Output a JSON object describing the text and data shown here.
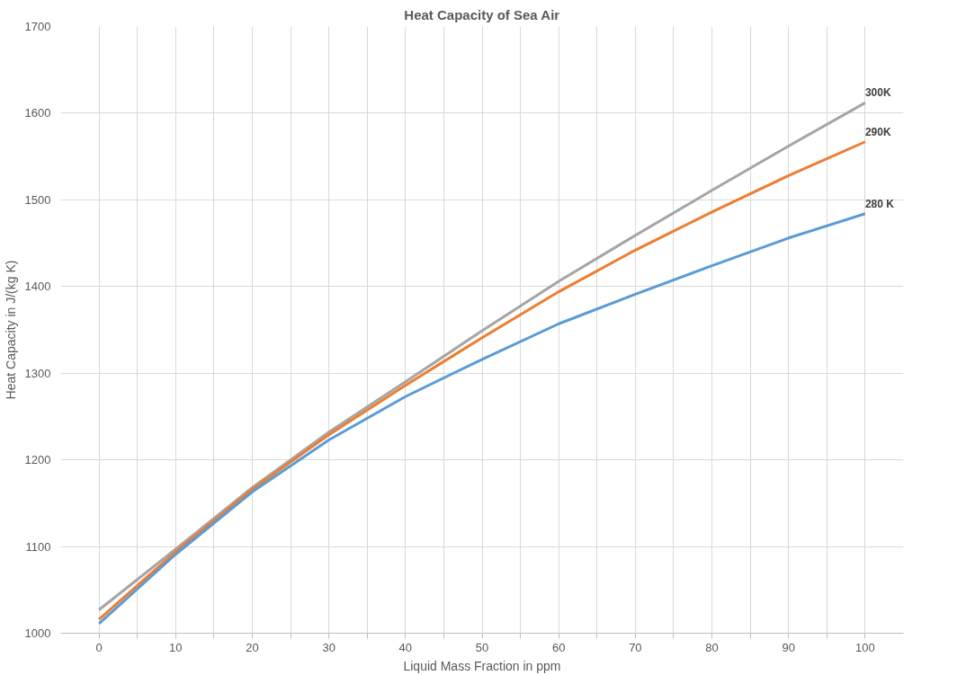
{
  "chart_data": {
    "type": "line",
    "title": "Heat Capacity of Sea Air",
    "xlabel": "Liquid Mass Fraction in ppm",
    "ylabel": "Heat Capacity in J/(kg K)",
    "x": [
      0,
      10,
      20,
      30,
      40,
      50,
      60,
      70,
      80,
      90,
      100
    ],
    "xlim": [
      -5,
      105
    ],
    "xticks": [
      0,
      {
        "value": 5,
        "label": null
      },
      10,
      {
        "value": 15,
        "label": null
      },
      20,
      {
        "value": 25,
        "label": null
      },
      30,
      {
        "value": 35,
        "label": null
      },
      40,
      {
        "value": 45,
        "label": null
      },
      50,
      {
        "value": 55,
        "label": null
      },
      60,
      {
        "value": 65,
        "label": null
      },
      70,
      {
        "value": 75,
        "label": null
      },
      80,
      {
        "value": 85,
        "label": null
      },
      90,
      {
        "value": 95,
        "label": null
      },
      100
    ],
    "ylim": [
      1000,
      1700
    ],
    "yticks": [
      1000,
      1100,
      1200,
      1300,
      1400,
      1500,
      1600,
      1700
    ],
    "grid": true,
    "marker": "none",
    "line_style": "solid",
    "series": [
      {
        "name": "300K",
        "color": "#a5a5a5",
        "values": [
          1027,
          1097,
          1168,
          1232,
          1290,
          1349,
          1406,
          1459,
          1511,
          1562,
          1612
        ]
      },
      {
        "name": "290K",
        "color": "#ed7d31",
        "values": [
          1016,
          1094,
          1166,
          1229,
          1286,
          1341,
          1394,
          1442,
          1486,
          1528,
          1567
        ]
      },
      {
        "name": "280 K",
        "color": "#5b9bd5",
        "values": [
          1011,
          1091,
          1163,
          1223,
          1273,
          1316,
          1357,
          1391,
          1424,
          1456,
          1484
        ]
      }
    ]
  }
}
